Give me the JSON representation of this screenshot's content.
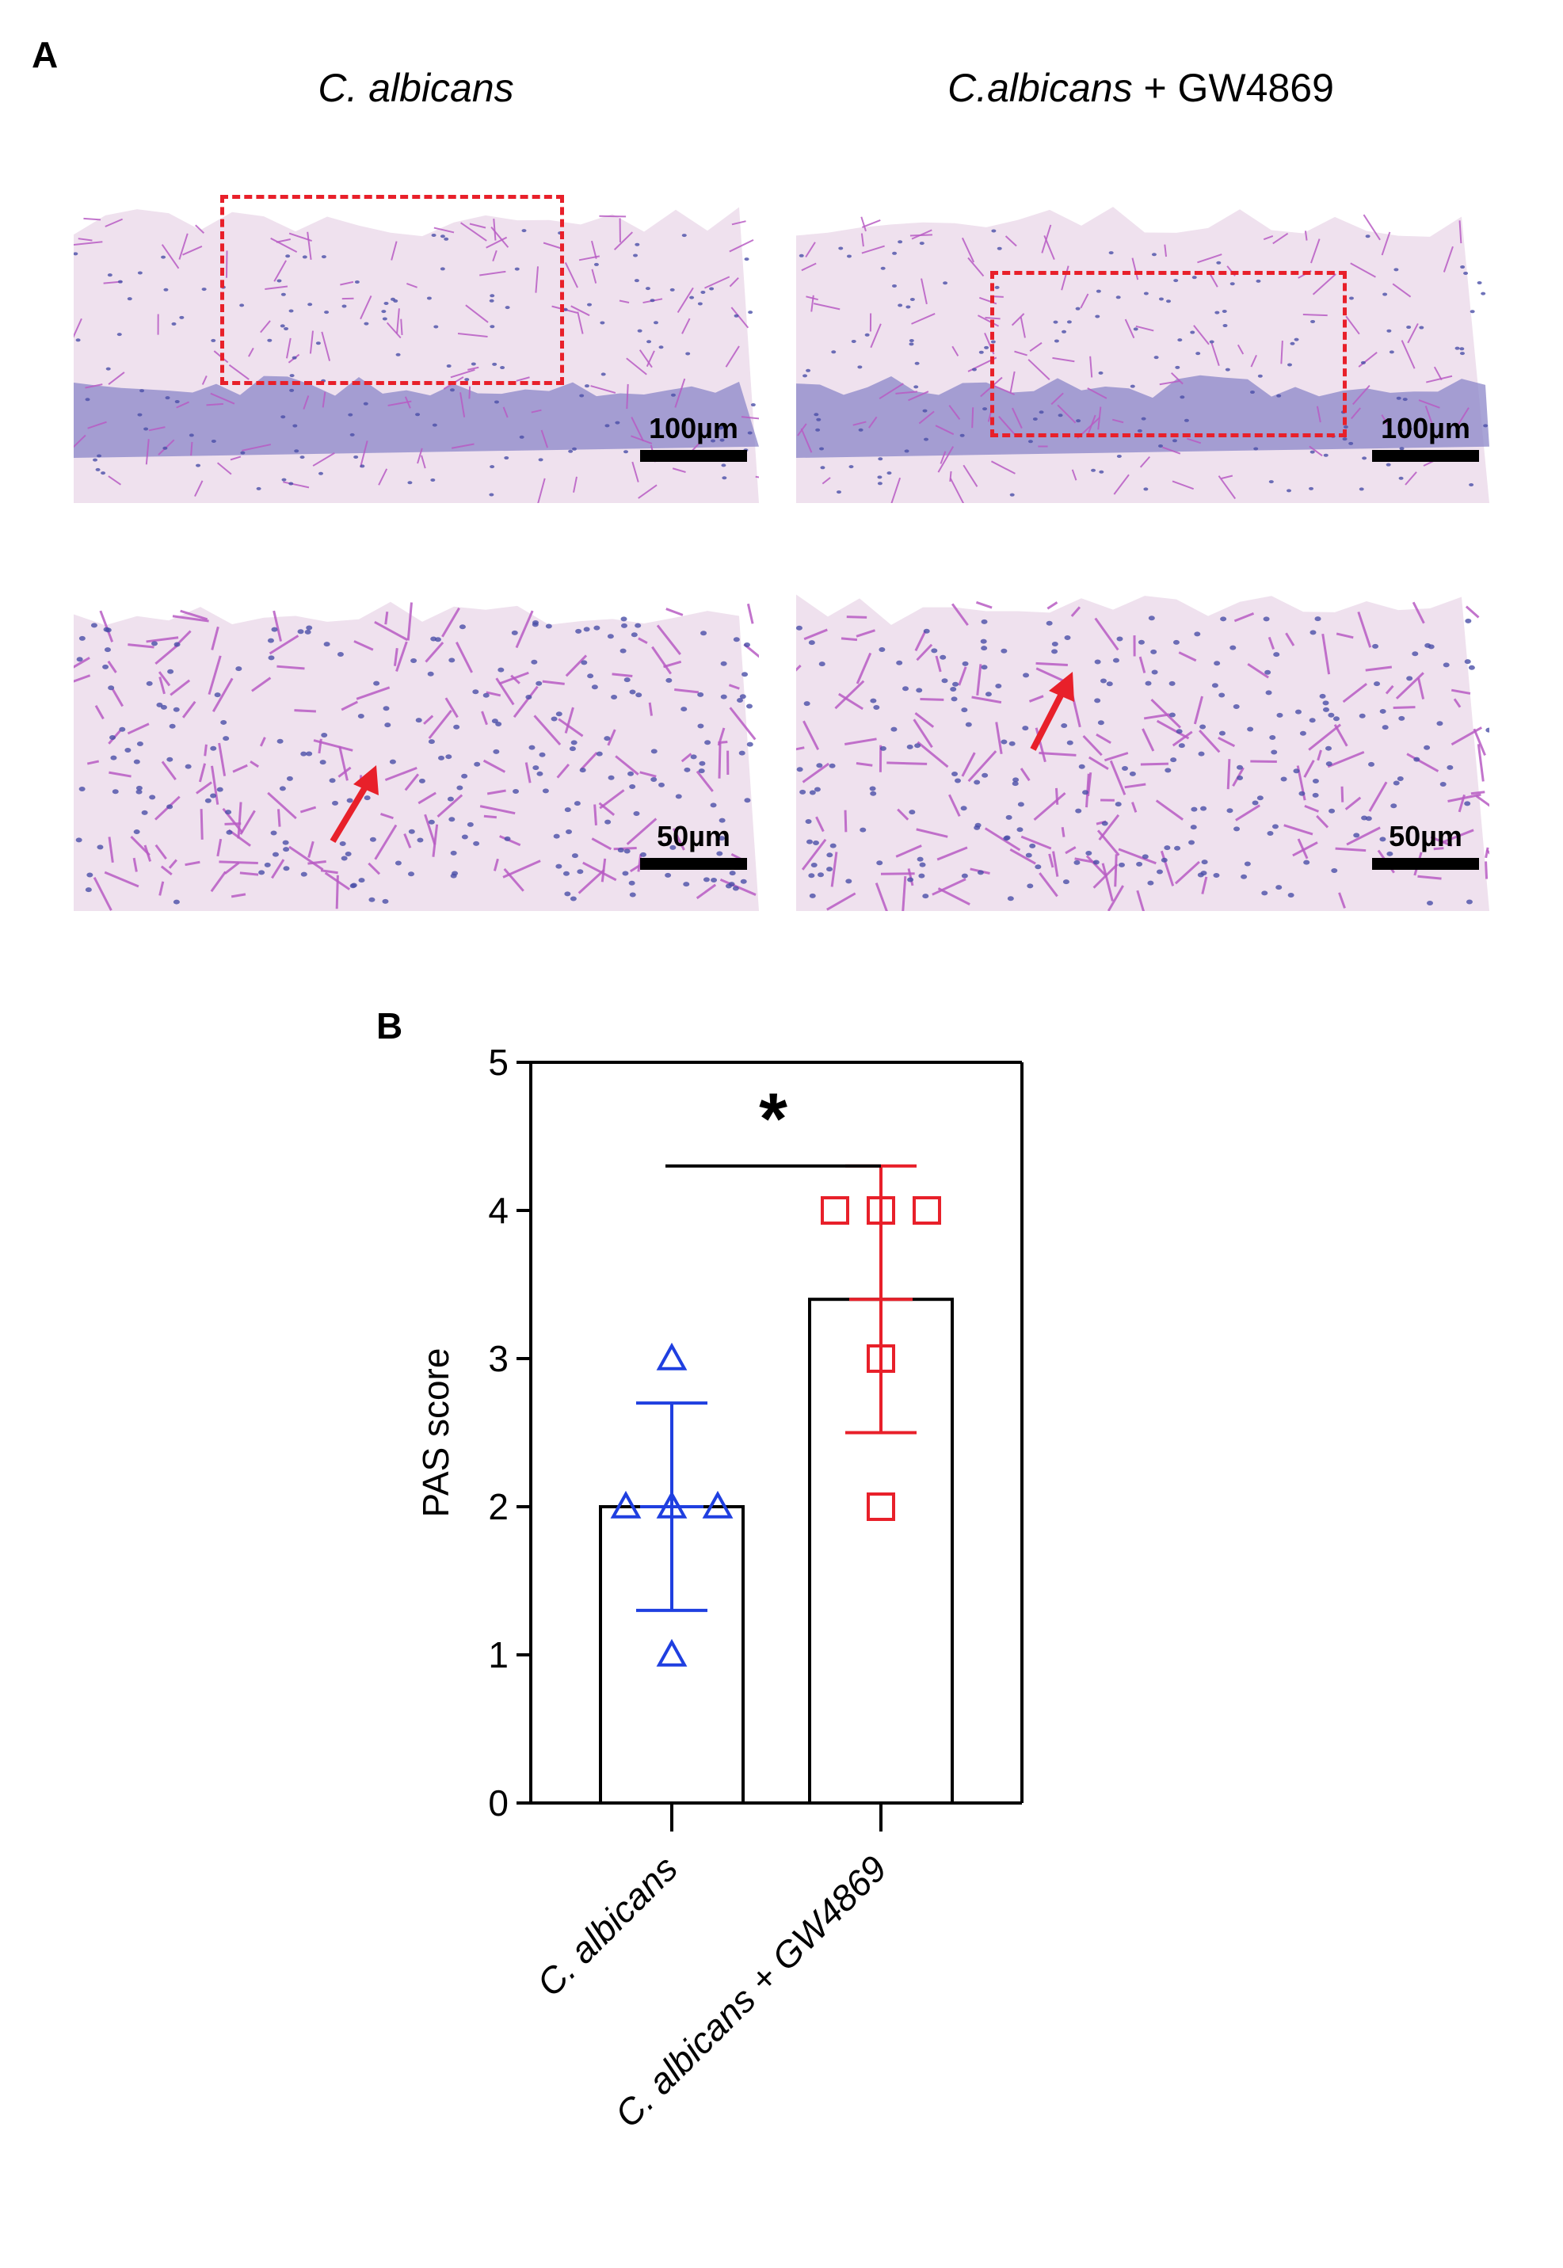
{
  "figure": {
    "panel_a_label": "A",
    "panel_b_label": "B",
    "col1_title_italic": "C. albicans",
    "col2_title_italic": "C.albicans",
    "col2_title_rest": " + GW4869",
    "scale_labels": [
      "100µm",
      "100µm",
      "50µm",
      "50µm"
    ]
  },
  "colors": {
    "tissue_bg": "#efe1ee",
    "hyphae": "#b85cc4",
    "nuclei": "#4a4fa8",
    "epithelium": "#8b86c8",
    "annotation_red": "#e8202a",
    "series1": "#1f3fe0",
    "series2": "#e8202a"
  },
  "chart_data": {
    "type": "bar",
    "ylabel": "PAS score",
    "ylim": [
      0,
      5
    ],
    "yticks": [
      "0",
      "1",
      "2",
      "3",
      "4",
      "5"
    ],
    "categories": [
      "C. albicans",
      "C. albicans + GW4869"
    ],
    "means": [
      2.0,
      3.4
    ],
    "error": [
      0.7,
      0.9
    ],
    "points": [
      {
        "category": "C. albicans",
        "marker": "triangle",
        "color": "#1f3fe0",
        "values": [
          3,
          2,
          2,
          2,
          1
        ]
      },
      {
        "category": "C. albicans + GW4869",
        "marker": "square",
        "color": "#e8202a",
        "values": [
          4,
          4,
          4,
          3,
          2
        ]
      }
    ],
    "significance": "*"
  }
}
